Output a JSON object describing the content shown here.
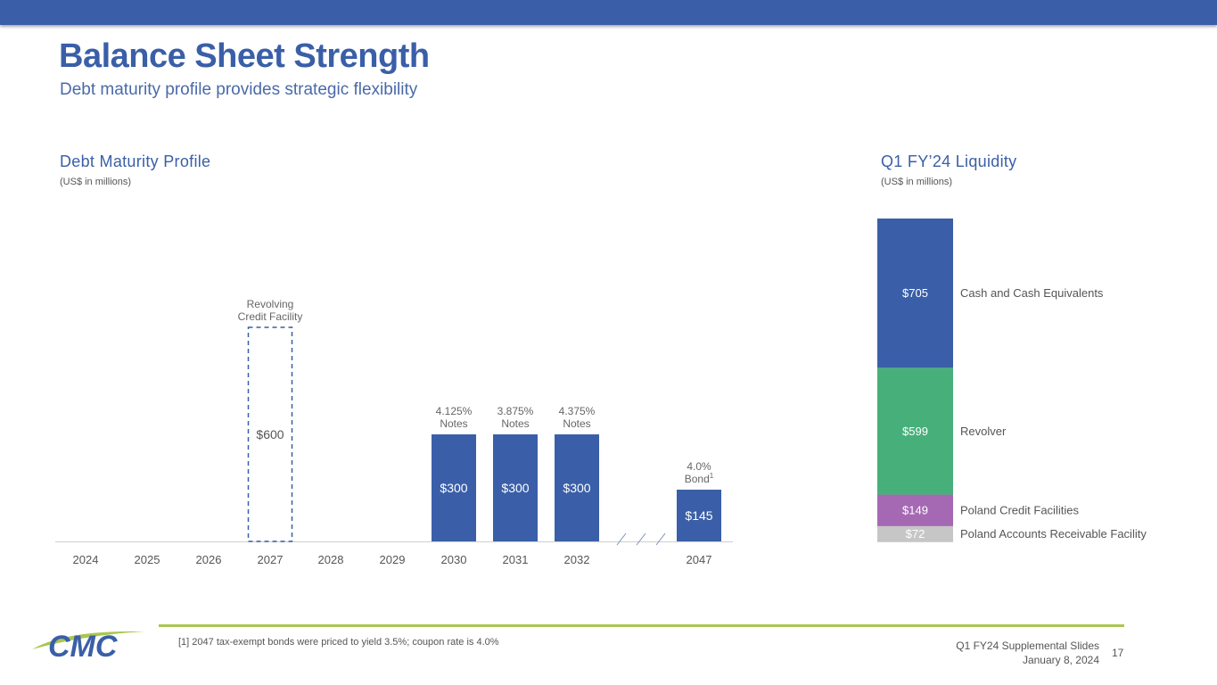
{
  "header": {
    "title": "Balance Sheet Strength",
    "subtitle": "Debt maturity profile provides strategic flexibility"
  },
  "colors": {
    "brand_blue": "#3a5fa8",
    "green": "#47b07a",
    "purple": "#a569b4",
    "gray": "#c6c6c6",
    "accent_line": "#a9c651"
  },
  "chart_data": [
    {
      "type": "bar",
      "title": "Debt Maturity Profile",
      "subtitle": "(US$ in millions)",
      "categories": [
        "2024",
        "2025",
        "2026",
        "2027",
        "2028",
        "2029",
        "2030",
        "2031",
        "2032",
        "2047"
      ],
      "values": [
        0,
        0,
        0,
        600,
        0,
        0,
        300,
        300,
        300,
        145
      ],
      "value_labels": [
        "",
        "",
        "",
        "$600",
        "",
        "",
        "$300",
        "$300",
        "$300",
        "$145"
      ],
      "bar_styles": [
        "none",
        "none",
        "none",
        "dashed",
        "none",
        "none",
        "solid",
        "solid",
        "solid",
        "solid"
      ],
      "annotations": [
        {
          "category": "2027",
          "lines": [
            "Revolving",
            "Credit Facility"
          ]
        },
        {
          "category": "2030",
          "lines": [
            "4.125%",
            "Notes"
          ]
        },
        {
          "category": "2031",
          "lines": [
            "3.875%",
            "Notes"
          ]
        },
        {
          "category": "2032",
          "lines": [
            "4.375%",
            "Notes"
          ]
        },
        {
          "category": "2047",
          "lines": [
            "4.0%",
            "Bond"
          ],
          "superscript": "1"
        }
      ],
      "axis_break": "2032-2047",
      "ylim": [
        0,
        600
      ]
    },
    {
      "type": "bar",
      "stacked": true,
      "title": "Q1 FY’24 Liquidity",
      "subtitle": "(US$ in millions)",
      "series": [
        {
          "name": "Poland Accounts Receivable Facility",
          "value": 72,
          "label": "$72",
          "color": "#c6c6c6"
        },
        {
          "name": "Poland Credit Facilities",
          "value": 149,
          "label": "$149",
          "color": "#a569b4"
        },
        {
          "name": "Revolver",
          "value": 599,
          "label": "$599",
          "color": "#47b07a"
        },
        {
          "name": "Cash and Cash Equivalents",
          "value": 705,
          "label": "$705",
          "color": "#3a5fa8"
        }
      ],
      "total": 1525
    }
  ],
  "footer": {
    "footnote": "[1] 2047 tax-exempt bonds were priced to yield 3.5%; coupon rate is 4.0%",
    "deck_name": "Q1 FY24 Supplemental Slides",
    "date": "January 8, 2024",
    "page": "17",
    "logo_text": "CMC"
  }
}
